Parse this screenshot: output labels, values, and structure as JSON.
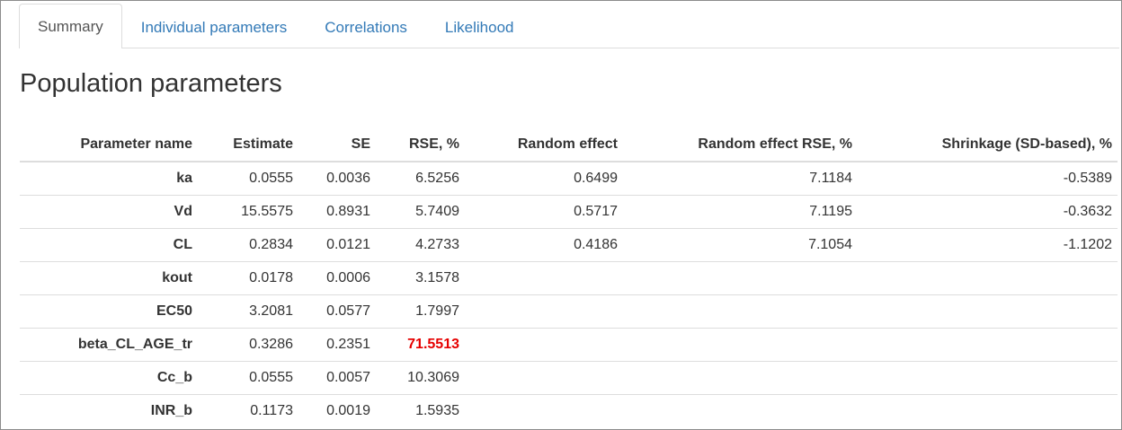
{
  "tabs": [
    {
      "label": "Summary",
      "active": true
    },
    {
      "label": "Individual parameters",
      "active": false
    },
    {
      "label": "Correlations",
      "active": false
    },
    {
      "label": "Likelihood",
      "active": false
    }
  ],
  "section_title": "Population parameters",
  "table": {
    "headers": [
      "Parameter name",
      "Estimate",
      "SE",
      "RSE, %",
      "Random effect",
      "Random effect RSE, %",
      "Shrinkage (SD-based), %"
    ],
    "rows": [
      {
        "name": "ka",
        "estimate": "0.0555",
        "se": "0.0036",
        "rse": "6.5256",
        "random_effect": "0.6499",
        "random_effect_rse": "7.1184",
        "shrinkage": "-0.5389",
        "flag": false
      },
      {
        "name": "Vd",
        "estimate": "15.5575",
        "se": "0.8931",
        "rse": "5.7409",
        "random_effect": "0.5717",
        "random_effect_rse": "7.1195",
        "shrinkage": "-0.3632",
        "flag": false
      },
      {
        "name": "CL",
        "estimate": "0.2834",
        "se": "0.0121",
        "rse": "4.2733",
        "random_effect": "0.4186",
        "random_effect_rse": "7.1054",
        "shrinkage": "-1.1202",
        "flag": false
      },
      {
        "name": "kout",
        "estimate": "0.0178",
        "se": "0.0006",
        "rse": "3.1578",
        "random_effect": "",
        "random_effect_rse": "",
        "shrinkage": "",
        "flag": false
      },
      {
        "name": "EC50",
        "estimate": "3.2081",
        "se": "0.0577",
        "rse": "1.7997",
        "random_effect": "",
        "random_effect_rse": "",
        "shrinkage": "",
        "flag": false
      },
      {
        "name": "beta_CL_AGE_tr",
        "estimate": "0.3286",
        "se": "0.2351",
        "rse": "71.5513",
        "random_effect": "",
        "random_effect_rse": "",
        "shrinkage": "",
        "flag": true
      },
      {
        "name": "Cc_b",
        "estimate": "0.0555",
        "se": "0.0057",
        "rse": "10.3069",
        "random_effect": "",
        "random_effect_rse": "",
        "shrinkage": "",
        "flag": false
      },
      {
        "name": "INR_b",
        "estimate": "0.1173",
        "se": "0.0019",
        "rse": "1.5935",
        "random_effect": "",
        "random_effect_rse": "",
        "shrinkage": "",
        "flag": false
      }
    ]
  },
  "colors": {
    "link": "#337ab7",
    "flag": "#e60000",
    "border": "#dddddd",
    "text": "#333333"
  }
}
